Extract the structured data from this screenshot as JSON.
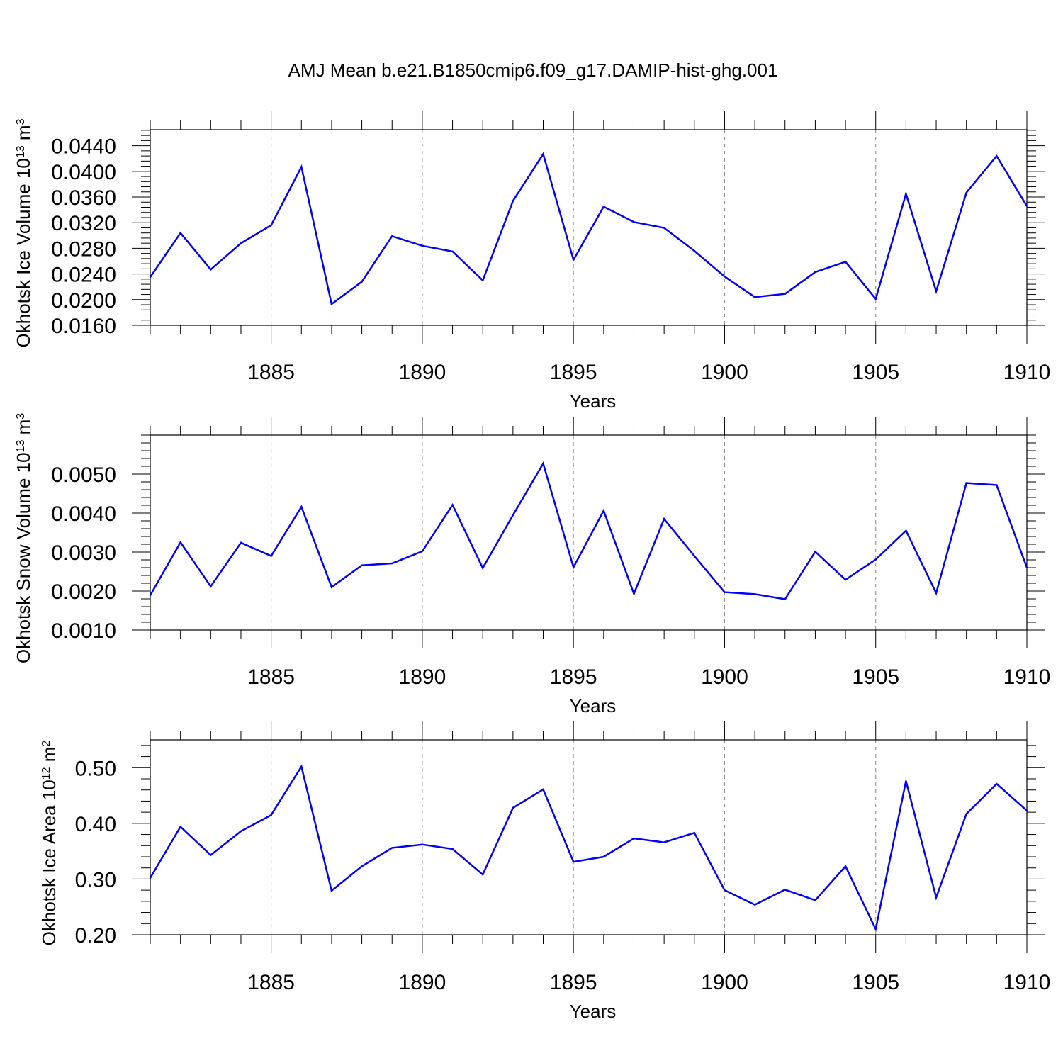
{
  "title": "AMJ Mean b.e21.B1850cmip6.f09_g17.DAMIP-hist-ghg.001",
  "line_color": "#0000ff",
  "chart_data": [
    {
      "type": "line",
      "ylabel_main": "Okhotsk Ice Volume 10",
      "ylabel_exp": "13",
      "ylabel_unit": " m",
      "ylabel_unit_exp": "3",
      "xlabel": "Years",
      "xlim": [
        1881,
        1910
      ],
      "ylim": [
        0.016,
        0.0465
      ],
      "x_ticks": [
        1885,
        1890,
        1895,
        1900,
        1905,
        1910
      ],
      "y_ticks": [
        "0.0160",
        "0.0200",
        "0.0240",
        "0.0280",
        "0.0320",
        "0.0360",
        "0.0400",
        "0.0440"
      ],
      "x": [
        1881,
        1882,
        1883,
        1884,
        1885,
        1886,
        1887,
        1888,
        1889,
        1890,
        1891,
        1892,
        1893,
        1894,
        1895,
        1896,
        1897,
        1898,
        1899,
        1900,
        1901,
        1902,
        1903,
        1904,
        1905,
        1906,
        1907,
        1908,
        1909,
        1910
      ],
      "values": [
        0.0235,
        0.0304,
        0.0247,
        0.0288,
        0.0316,
        0.0407,
        0.0193,
        0.0228,
        0.0299,
        0.0284,
        0.0275,
        0.023,
        0.0354,
        0.0427,
        0.0262,
        0.0345,
        0.0321,
        0.0312,
        0.0276,
        0.0236,
        0.0204,
        0.0209,
        0.0243,
        0.0259,
        0.0201,
        0.0365,
        0.0213,
        0.0367,
        0.0424,
        0.0346
      ]
    },
    {
      "type": "line",
      "ylabel_main": "Okhotsk Snow Volume 10",
      "ylabel_exp": "13",
      "ylabel_unit": " m",
      "ylabel_unit_exp": "3",
      "xlabel": "Years",
      "xlim": [
        1881,
        1910
      ],
      "ylim": [
        0.001,
        0.006
      ],
      "x_ticks": [
        1885,
        1890,
        1895,
        1900,
        1905,
        1910
      ],
      "y_ticks": [
        "0.0010",
        "0.0020",
        "0.0030",
        "0.0040",
        "0.0050"
      ],
      "x": [
        1881,
        1882,
        1883,
        1884,
        1885,
        1886,
        1887,
        1888,
        1889,
        1890,
        1891,
        1892,
        1893,
        1894,
        1895,
        1896,
        1897,
        1898,
        1899,
        1900,
        1901,
        1902,
        1903,
        1904,
        1905,
        1906,
        1907,
        1908,
        1909,
        1910
      ],
      "values": [
        0.00189,
        0.00325,
        0.00212,
        0.00324,
        0.0029,
        0.00416,
        0.0021,
        0.00266,
        0.00271,
        0.00302,
        0.00421,
        0.00259,
        0.00395,
        0.00527,
        0.00261,
        0.00406,
        0.00193,
        0.00385,
        0.0029,
        0.00197,
        0.00192,
        0.00179,
        0.00301,
        0.00229,
        0.00281,
        0.00355,
        0.00195,
        0.00477,
        0.00472,
        0.0026
      ]
    },
    {
      "type": "line",
      "ylabel_main": "Okhotsk Ice Area 10",
      "ylabel_exp": "12",
      "ylabel_unit": " m",
      "ylabel_unit_exp": "2",
      "xlabel": "Years",
      "xlim": [
        1881,
        1910
      ],
      "ylim": [
        0.2,
        0.55
      ],
      "x_ticks": [
        1885,
        1890,
        1895,
        1900,
        1905,
        1910
      ],
      "y_ticks": [
        "0.20",
        "0.30",
        "0.40",
        "0.50"
      ],
      "x": [
        1881,
        1882,
        1883,
        1884,
        1885,
        1886,
        1887,
        1888,
        1889,
        1890,
        1891,
        1892,
        1893,
        1894,
        1895,
        1896,
        1897,
        1898,
        1899,
        1900,
        1901,
        1902,
        1903,
        1904,
        1905,
        1906,
        1907,
        1908,
        1909,
        1910
      ],
      "values": [
        0.302,
        0.394,
        0.343,
        0.386,
        0.415,
        0.502,
        0.279,
        0.323,
        0.356,
        0.362,
        0.354,
        0.308,
        0.428,
        0.461,
        0.331,
        0.34,
        0.373,
        0.366,
        0.383,
        0.28,
        0.254,
        0.281,
        0.262,
        0.323,
        0.21,
        0.476,
        0.267,
        0.417,
        0.471,
        0.423
      ]
    }
  ]
}
